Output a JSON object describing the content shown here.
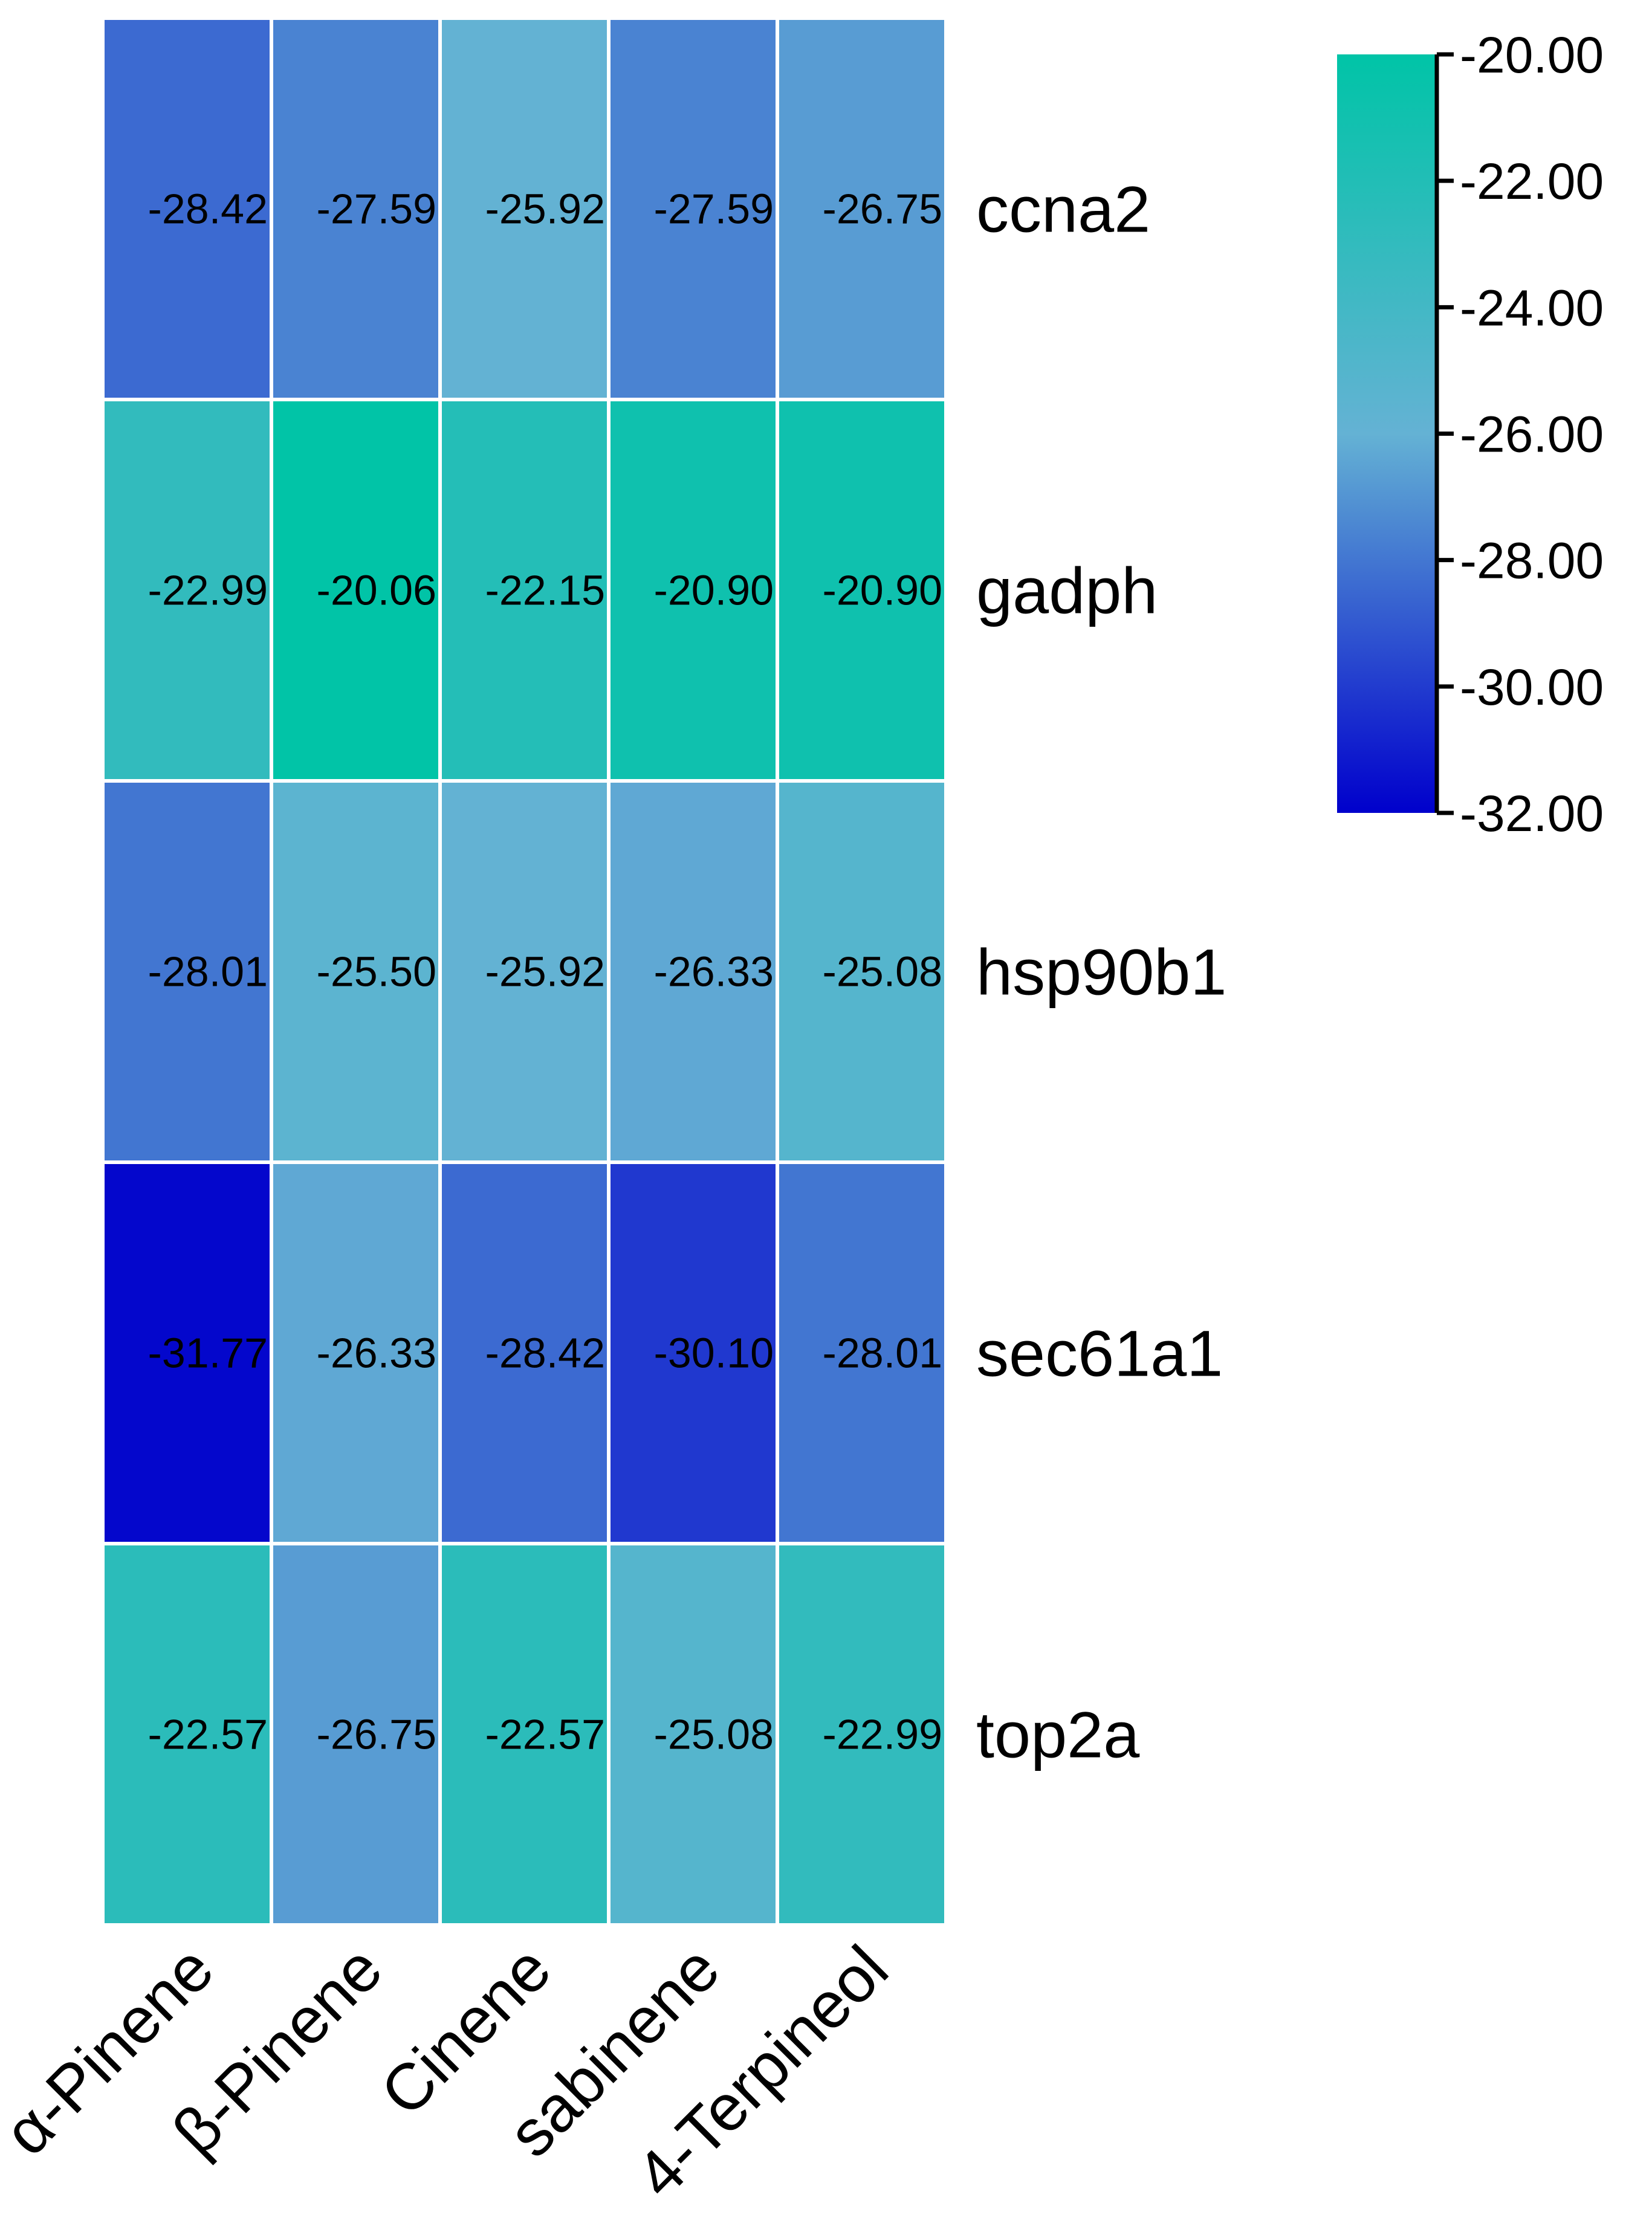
{
  "chart_data": {
    "type": "heatmap",
    "columns": [
      "α-Pinene",
      "β-Pinene",
      "Cinene",
      "sabinene",
      "4-Terpineol"
    ],
    "rows": [
      "ccna2",
      "gadph",
      "hsp90b1",
      "sec61a1",
      "top2a"
    ],
    "values": [
      [
        -28.42,
        -27.59,
        -25.92,
        -27.59,
        -26.75
      ],
      [
        -22.99,
        -20.06,
        -22.15,
        -20.9,
        -20.9
      ],
      [
        -28.01,
        -25.5,
        -25.92,
        -26.33,
        -25.08
      ],
      [
        -31.77,
        -26.33,
        -28.42,
        -30.1,
        -28.01
      ],
      [
        -22.57,
        -26.75,
        -22.57,
        -25.08,
        -22.99
      ]
    ],
    "labels": [
      [
        "-28.42",
        "-27.59",
        "-25.92",
        "-27.59",
        "-26.75"
      ],
      [
        "-22.99",
        "-20.06",
        "-22.15",
        "-20.90",
        "-20.90"
      ],
      [
        "-28.01",
        "-25.50",
        "-25.92",
        "-26.33",
        "-25.08"
      ],
      [
        "-31.77",
        "-26.33",
        "-28.42",
        "-30.10",
        "-28.01"
      ],
      [
        "-22.57",
        "-26.75",
        "-22.57",
        "-25.08",
        "-22.99"
      ]
    ],
    "colorbar": {
      "min": -32.0,
      "max": -20.0,
      "ticks": [
        "-20.00",
        "-22.00",
        "-24.00",
        "-26.00",
        "-28.00",
        "-30.00",
        "-32.00"
      ],
      "colors": {
        "low": "#0000cc",
        "mid": "#64b2d4",
        "high": "#00c4a7"
      },
      "placement": "top-right"
    }
  }
}
